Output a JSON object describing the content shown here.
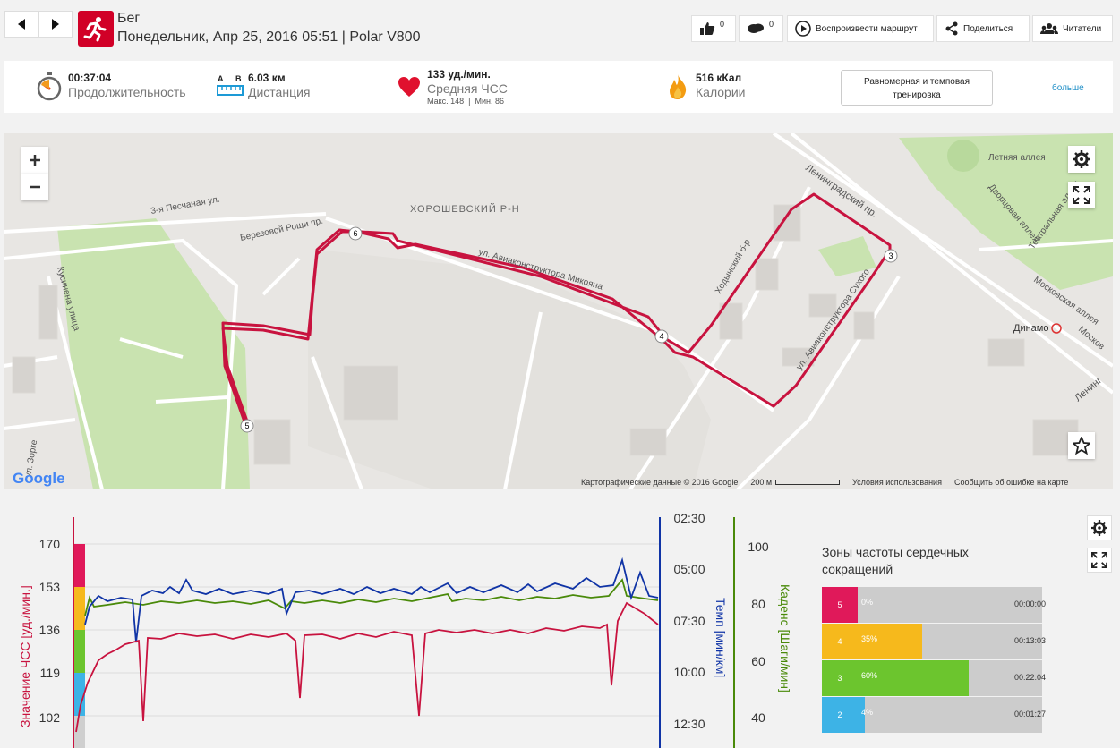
{
  "header": {
    "title": "Бег",
    "subtitle": "Понедельник, Апр 25, 2016 05:51 | Polar V800",
    "like_count": "0",
    "comment_count": "0",
    "replay_label": "Воспроизвести маршрут",
    "share_label": "Поделиться",
    "readers_label": "Читатели",
    "icons": {
      "back": "arrow-left-icon",
      "forward": "arrow-right-icon",
      "sport": "running-icon",
      "like": "thumbs-up-icon",
      "comment": "comment-icon",
      "replay": "play-icon",
      "share": "share-icon",
      "readers": "people-icon"
    }
  },
  "summary": {
    "duration": {
      "value": "00:37:04",
      "label": "Продолжительность"
    },
    "distance": {
      "a": "A",
      "b": "B",
      "value": "6.03 км",
      "label": "Дистанция"
    },
    "heart_rate": {
      "value": "133 уд./мин.",
      "label": "Средняя ЧСС",
      "max_min": "Макс. 148  |  Мин. 86"
    },
    "calories": {
      "value": "516 кКал",
      "label": "Калории"
    },
    "training_type": "Равномерная и темповая тренировка",
    "more": "больше"
  },
  "map": {
    "district": "ХОРОШЕВСКИЙ Р-Н",
    "streets": [
      "3-я Песчаная ул.",
      "ул. Авиаконструктора Микояна",
      "Ленинградский пр.",
      "Летняя аллея",
      "Дворцовая аллея",
      "Театральная аллея",
      "Московская аллея",
      "Кусинена улица",
      "Березовой Рощи пр.",
      "Ходынский б-р",
      "ул. Авиаконструктора Сухого",
      "Динамо",
      "ул. Зорге",
      "Ленинг",
      "Москов"
    ],
    "markers": [
      "3",
      "4",
      "5",
      "6"
    ],
    "footer": {
      "data": "Картографические данные © 2016 Google",
      "scale": "200 м",
      "terms": "Условия использования",
      "report": "Сообщить об ошибке на карте"
    },
    "logo": "Google",
    "route_color": "#c8133f"
  },
  "chart": {
    "hr_axis_label": "Значение ЧСС [уд./мин.]",
    "pace_axis_label": "Темп [мин/км]",
    "cadence_axis_label": "Каденс [Шаги/мин]",
    "hr_ticks": [
      "170",
      "153",
      "136",
      "119",
      "102"
    ],
    "pace_ticks": [
      "02:30",
      "05:00",
      "07:30",
      "10:00",
      "12:30"
    ],
    "cadence_ticks": [
      "100",
      "80",
      "60",
      "40"
    ],
    "colors": {
      "hr": "#c8133f",
      "pace": "#1034a6",
      "cadence": "#4a8a0a"
    }
  },
  "zones": {
    "title": "Зоны частоты сердечных сокращений",
    "items": [
      {
        "zone": "5",
        "percent": "0%",
        "time": "00:00:00",
        "color": "#e0195a",
        "fraction": 0.0
      },
      {
        "zone": "4",
        "percent": "35%",
        "time": "00:13:03",
        "color": "#f6b91c",
        "fraction": 0.35
      },
      {
        "zone": "3",
        "percent": "60%",
        "time": "00:22:04",
        "color": "#6cc52e",
        "fraction": 0.6
      },
      {
        "zone": "2",
        "percent": "4%",
        "time": "00:01:27",
        "color": "#3db3e6",
        "fraction": 0.04
      }
    ]
  }
}
